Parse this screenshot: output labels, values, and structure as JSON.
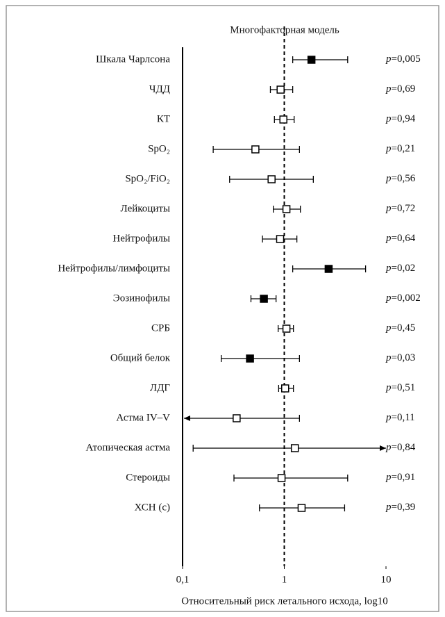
{
  "chart_data": {
    "type": "forest",
    "title": "Многофакторная модель",
    "x_label": "Относительный риск летального исхода, log10",
    "log_x": true,
    "xlim": [
      0.1,
      10
    ],
    "xticks": [
      {
        "value": 0.1,
        "label": "0,1"
      },
      1,
      10
    ],
    "reference": 1,
    "categories": [
      "Шкала Чарлсона",
      "ЧДД",
      "КТ",
      "SpO₂",
      "SpO₂/FiO₂",
      "Лейкоциты",
      "Нейтрофилы",
      "Нейтрофилы/лимфоциты",
      "Эозинофилы",
      "СРБ",
      "Общий белок",
      "ЛДГ",
      "Астма IV–V",
      "Атопическая астма",
      "Стероиды",
      "ХСН (с)"
    ],
    "values": [
      1.85,
      0.92,
      0.98,
      0.52,
      0.75,
      1.05,
      0.91,
      2.73,
      0.63,
      1.05,
      0.46,
      1.02,
      0.34,
      1.27,
      0.94,
      1.48
    ],
    "ci_low": [
      1.21,
      0.73,
      0.8,
      0.2,
      0.29,
      0.78,
      0.61,
      1.21,
      0.47,
      0.87,
      0.24,
      0.88,
      null,
      0.127,
      0.32,
      0.57
    ],
    "ci_high": [
      4.2,
      1.21,
      1.25,
      1.41,
      1.93,
      1.44,
      1.33,
      6.3,
      0.83,
      1.23,
      1.41,
      1.23,
      1.41,
      null,
      4.2,
      3.92
    ],
    "filled": [
      true,
      false,
      false,
      false,
      false,
      false,
      false,
      true,
      true,
      false,
      true,
      false,
      false,
      false,
      false,
      false
    ],
    "p_prefix": "p",
    "p_values": [
      "=0,005",
      "=0,69",
      "=0,94",
      "=0,21",
      "=0,56",
      "=0,72",
      "=0,64",
      "=0,02",
      "=0,002",
      "=0,45",
      "=0,03",
      "=0,51",
      "=0,11",
      "=0,84",
      "=0,91",
      "=0,39"
    ],
    "color": "#000000"
  }
}
